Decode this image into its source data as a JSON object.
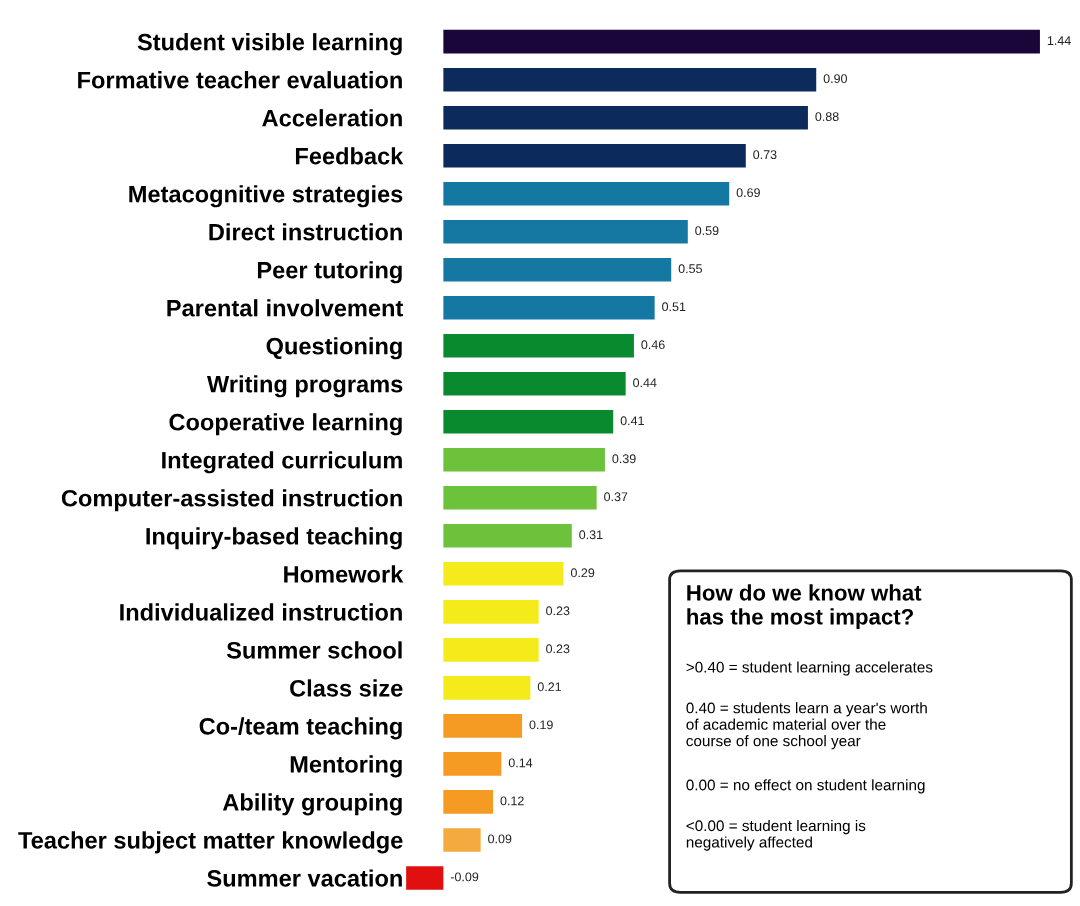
{
  "chart_data": {
    "type": "bar",
    "orientation": "horizontal",
    "categories": [
      "Student visible learning",
      "Formative teacher evaluation",
      "Acceleration",
      "Feedback",
      "Metacognitive strategies",
      "Direct instruction",
      "Peer tutoring",
      "Parental involvement",
      "Questioning",
      "Writing programs",
      "Cooperative learning",
      "Integrated curriculum",
      "Computer-assisted instruction",
      "Inquiry-based teaching",
      "Homework",
      "Individualized instruction",
      "Summer school",
      "Class size",
      "Co-/team teaching",
      "Mentoring",
      "Ability grouping",
      "Teacher subject matter knowledge",
      "Summer vacation"
    ],
    "values": [
      1.44,
      0.9,
      0.88,
      0.73,
      0.69,
      0.59,
      0.55,
      0.51,
      0.46,
      0.44,
      0.41,
      0.39,
      0.37,
      0.31,
      0.29,
      0.23,
      0.23,
      0.21,
      0.19,
      0.14,
      0.12,
      0.09,
      -0.09
    ],
    "colors": [
      "#1a0638",
      "#0d2a5c",
      "#0d2a5c",
      "#0d2a5c",
      "#1478a3",
      "#1478a3",
      "#1478a3",
      "#1478a3",
      "#0a8a2e",
      "#0a8a2e",
      "#0a8a2e",
      "#6cc23a",
      "#6cc23a",
      "#6cc23a",
      "#f5ea1a",
      "#f5ea1a",
      "#f5ea1a",
      "#f5ea1a",
      "#f59a23",
      "#f59a23",
      "#f59a23",
      "#f5aa40",
      "#e01010"
    ],
    "value_labels": [
      "1.44",
      "0.90",
      "0.88",
      "0.73",
      "0.69",
      "0.59",
      "0.55",
      "0.51",
      "0.46",
      "0.44",
      "0.41",
      "0.39",
      "0.37",
      "0.31",
      "0.29",
      "0.23",
      "0.23",
      "0.21",
      "0.19",
      "0.14",
      "0.12",
      "0.09",
      "-0.09"
    ],
    "tick_labels": "y",
    "grid": false,
    "legend": false,
    "annotations": [
      "How do we know what\nhas the most impact?",
      ">0.40 = student learning accelerates",
      "0.40 = students learn a year's worth\nof academic material over the\ncourse of one school year",
      "0.00 = no effect on student learning",
      "<0.00 = student learning is\nnegatively affected"
    ]
  }
}
